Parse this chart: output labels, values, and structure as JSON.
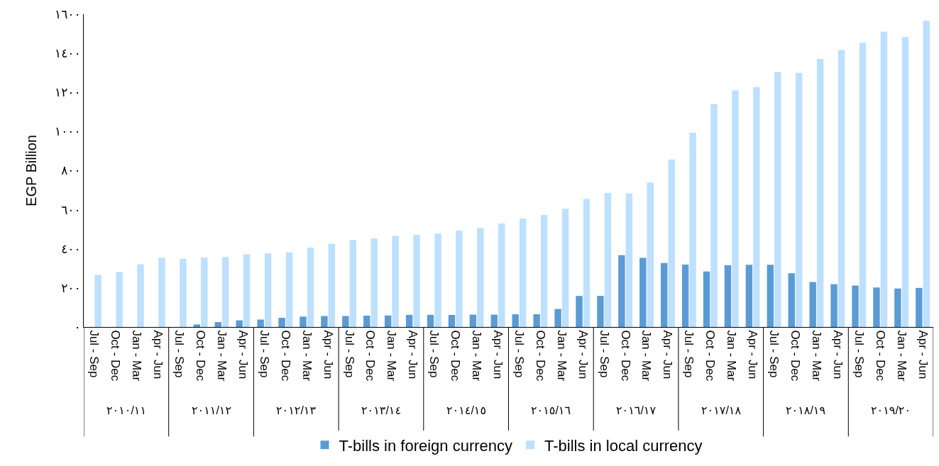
{
  "chart_data": {
    "type": "bar",
    "ylabel": "EGP Billion",
    "categories": [
      "Jul - Sep",
      "Oct - Dec",
      "Jan - Mar",
      "Apr - Jun",
      "Jul - Sep",
      "Oct - Dec",
      "Jan - Mar",
      "Apr - Jun",
      "Jul - Sep",
      "Oct - Dec",
      "Jan - Mar",
      "Apr - Jun",
      "Jul - Sep",
      "Oct - Dec",
      "Jan - Mar",
      "Apr - Jun",
      "Jul - Sep",
      "Oct - Dec",
      "Jan - Mar",
      "Apr - Jun",
      "Jul - Sep",
      "Oct - Dec",
      "Jan - Mar",
      "Apr - Jun",
      "Jul - Sep",
      "Oct - Dec",
      "Jan - Mar",
      "Apr - Jun",
      "Jul - Sep",
      "Oct - Dec",
      "Jan - Mar",
      "Apr - Jun",
      "Jul - Sep",
      "Oct - Dec",
      "Jan - Mar",
      "Apr - Jun",
      "Jul - Sep",
      "Oct - Dec",
      "Jan - Mar",
      "Apr - Jun"
    ],
    "series": [
      {
        "name": "T-bills in foreign currency",
        "color": "#5b9bd5",
        "values": [
          null,
          null,
          null,
          null,
          null,
          13,
          25,
          34,
          38,
          47,
          53,
          56,
          56,
          58,
          59,
          62,
          62,
          62,
          63,
          63,
          65,
          65,
          92,
          159,
          159,
          367,
          354,
          327,
          319,
          284,
          316,
          318,
          318,
          275,
          230,
          219,
          212,
          202,
          197,
          200
        ]
      },
      {
        "name": "T-bills in local currency",
        "color": "#bde0fe",
        "values": [
          266,
          281,
          320,
          355,
          348,
          355,
          357,
          372,
          376,
          382,
          406,
          425,
          444,
          453,
          466,
          471,
          478,
          493,
          506,
          530,
          554,
          573,
          605,
          655,
          686,
          683,
          739,
          857,
          994,
          1140,
          1210,
          1227,
          1304,
          1300,
          1371,
          1417,
          1454,
          1511,
          1483,
          1566
        ]
      }
    ],
    "ylim": [
      0,
      1600
    ],
    "yticks": [
      {
        "value": 0,
        "label": "٠"
      },
      {
        "value": 200,
        "label": "٢٠٠"
      },
      {
        "value": 400,
        "label": "٤٠٠"
      },
      {
        "value": 600,
        "label": "٦٠٠"
      },
      {
        "value": 800,
        "label": "٨٠٠"
      },
      {
        "value": 1000,
        "label": "١٠٠٠"
      },
      {
        "value": 1200,
        "label": "١٢٠٠"
      },
      {
        "value": 1400,
        "label": "١٤٠٠"
      },
      {
        "value": 1600,
        "label": "١٦٠٠"
      }
    ],
    "annotations": [
      "٢٠١٠/١١",
      "٢٠١١/١٢",
      "٢٠١٢/١٣",
      "٢٠١٣/١٤",
      "٢٠١٤/١٥",
      "٢٠١٥/١٦",
      "٢٠١٦/١٧",
      "٢٠١٧/١٨",
      "٢٠١٨/١٩",
      "٢٠١٩/٢٠"
    ],
    "grid": false,
    "legend": "bottom"
  }
}
